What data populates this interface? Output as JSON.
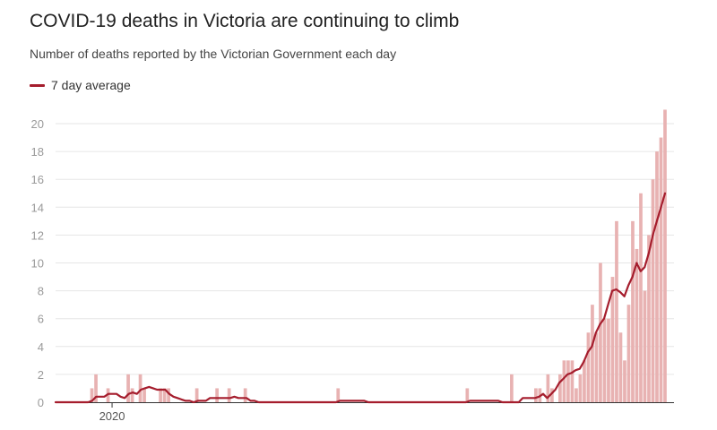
{
  "chart_data": {
    "type": "bar",
    "title": "COVID-19 deaths in Victoria are continuing to climb",
    "subtitle": "Number of deaths reported by the Victorian Government each day",
    "legend": [
      {
        "name": "7 day average",
        "color": "#a51d2d"
      }
    ],
    "y_ticks": [
      0,
      2,
      4,
      6,
      8,
      10,
      12,
      14,
      16,
      18,
      20
    ],
    "ylim": [
      0,
      21
    ],
    "x_tick_labels": [
      {
        "label": "2020",
        "day_index": 14
      }
    ],
    "grid": true,
    "bar_color": "#e8b2b2",
    "line_color": "#a51d2d",
    "day_count": 148,
    "daily_deaths": [
      0,
      0,
      0,
      0,
      0,
      0,
      0,
      0,
      0,
      1,
      2,
      0,
      0,
      1,
      0,
      0,
      0,
      0,
      2,
      1,
      0,
      2,
      1,
      0,
      0,
      0,
      1,
      1,
      1,
      0,
      0,
      0,
      0,
      0,
      0,
      1,
      0,
      0,
      0,
      0,
      1,
      0,
      0,
      1,
      0,
      0,
      0,
      1,
      0,
      0,
      0,
      0,
      0,
      0,
      0,
      0,
      0,
      0,
      0,
      0,
      0,
      0,
      0,
      0,
      0,
      0,
      0,
      0,
      0,
      0,
      1,
      0,
      0,
      0,
      0,
      0,
      0,
      0,
      0,
      0,
      0,
      0,
      0,
      0,
      0,
      0,
      0,
      0,
      0,
      0,
      0,
      0,
      0,
      0,
      0,
      0,
      0,
      0,
      0,
      0,
      0,
      0,
      1,
      0,
      0,
      0,
      0,
      0,
      0,
      0,
      0,
      0,
      0,
      2,
      0,
      0,
      0,
      0,
      0,
      1,
      1,
      0,
      2,
      1,
      0,
      2,
      3,
      3,
      3,
      1,
      2,
      3,
      5,
      7,
      5,
      10,
      6,
      6,
      9,
      13,
      5,
      3,
      7,
      13,
      11,
      15,
      8,
      12
    ],
    "daily_deaths_tail": [
      16,
      18,
      19,
      21
    ],
    "seven_day_average": [
      0,
      0,
      0,
      0,
      0,
      0,
      0,
      0,
      0,
      0.1,
      0.4,
      0.4,
      0.4,
      0.6,
      0.6,
      0.6,
      0.4,
      0.3,
      0.6,
      0.7,
      0.6,
      0.9,
      1.0,
      1.1,
      1.0,
      0.9,
      0.9,
      0.9,
      0.6,
      0.4,
      0.3,
      0.2,
      0.1,
      0.1,
      0,
      0.1,
      0.1,
      0.1,
      0.3,
      0.3,
      0.3,
      0.3,
      0.3,
      0.3,
      0.4,
      0.3,
      0.3,
      0.3,
      0.1,
      0.1,
      0,
      0,
      0,
      0,
      0,
      0,
      0,
      0,
      0,
      0,
      0,
      0,
      0,
      0,
      0,
      0,
      0,
      0,
      0,
      0,
      0.1,
      0.1,
      0.1,
      0.1,
      0.1,
      0.1,
      0.1,
      0,
      0,
      0,
      0,
      0,
      0,
      0,
      0,
      0,
      0,
      0,
      0,
      0,
      0,
      0,
      0,
      0,
      0,
      0,
      0,
      0,
      0,
      0,
      0,
      0,
      0.1,
      0.1,
      0.1,
      0.1,
      0.1,
      0.1,
      0.1,
      0.1,
      0,
      0,
      0,
      0,
      0,
      0.3,
      0.3,
      0.3,
      0.3,
      0.4,
      0.6,
      0.3,
      0.6,
      0.9,
      1.4,
      1.7,
      2.0,
      2.1,
      2.3,
      2.4,
      2.9,
      3.6,
      4.0,
      5.0,
      5.6,
      6.0,
      7.0,
      8.0,
      8.1,
      7.9,
      7.6,
      8.4,
      9.0,
      10.0,
      9.4,
      9.7,
      10.7,
      12.0,
      13.0,
      14.0,
      15.0
    ]
  }
}
